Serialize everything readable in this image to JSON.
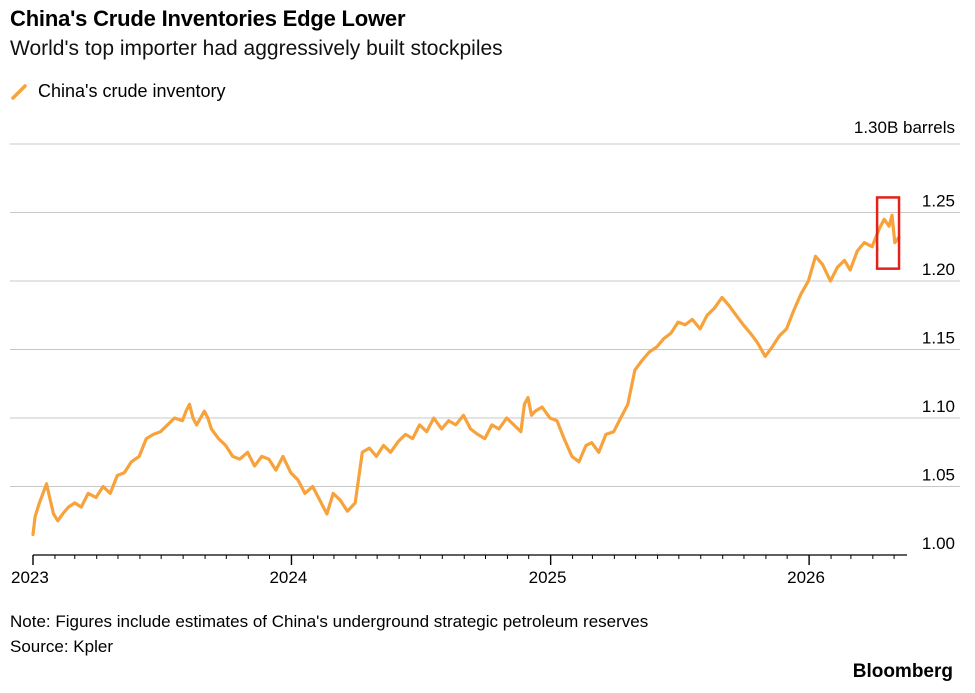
{
  "header": {
    "title": "China's Crude Inventories Edge Lower",
    "subtitle": "World's top importer had aggressively built stockpiles"
  },
  "legend": {
    "label": "China's crude inventory",
    "icon": "line-swatch-icon"
  },
  "footer": {
    "note": "Note: Figures include estimates of China's underground strategic petroleum reserves",
    "source": "Source: Kpler",
    "brand": "Bloomberg"
  },
  "colors": {
    "series": "#F7A23B",
    "grid": "#C8C8C8",
    "axis": "#000000",
    "highlight": "#E2231A"
  },
  "chart_data": {
    "type": "line",
    "title": "China's Crude Inventories Edge Lower",
    "subtitle": "World's top importer had aggressively built stockpiles",
    "unit_label": "1.30B barrels",
    "xlabel": "",
    "ylabel": "",
    "ylim": [
      1.0,
      1.3
    ],
    "yticks": [
      1.0,
      1.05,
      1.1,
      1.15,
      1.2,
      1.25,
      1.3
    ],
    "ytick_labels": [
      "1.00",
      "1.05",
      "1.10",
      "1.15",
      "1.20",
      "1.25",
      "1.30B barrels"
    ],
    "xlim": [
      "2023-01-01",
      "2026-05-15"
    ],
    "xticks": [
      "2023-01-01",
      "2024-01-01",
      "2025-01-01",
      "2026-01-01"
    ],
    "xtick_labels": [
      "2023",
      "2024",
      "2025",
      "2026"
    ],
    "grid": true,
    "legend_position": "top-left",
    "highlight": {
      "note": "recent decline boxed in red",
      "x_range": [
        "2026-04-07",
        "2026-05-08"
      ],
      "y_range": [
        1.209,
        1.261
      ]
    },
    "series": [
      {
        "name": "China's crude inventory",
        "x": [
          "2023-01-01",
          "2023-01-04",
          "2023-01-10",
          "2023-01-20",
          "2023-01-30",
          "2023-02-05",
          "2023-02-12",
          "2023-02-20",
          "2023-03-01",
          "2023-03-10",
          "2023-03-20",
          "2023-03-31",
          "2023-04-10",
          "2023-04-20",
          "2023-04-30",
          "2023-05-10",
          "2023-05-20",
          "2023-05-31",
          "2023-06-10",
          "2023-06-20",
          "2023-06-30",
          "2023-07-10",
          "2023-07-20",
          "2023-07-31",
          "2023-08-05",
          "2023-08-10",
          "2023-08-15",
          "2023-08-20",
          "2023-08-31",
          "2023-09-05",
          "2023-09-10",
          "2023-09-20",
          "2023-09-30",
          "2023-10-10",
          "2023-10-20",
          "2023-10-31",
          "2023-11-10",
          "2023-11-20",
          "2023-11-30",
          "2023-12-10",
          "2023-12-20",
          "2023-12-31",
          "2024-01-10",
          "2024-01-20",
          "2024-01-31",
          "2024-02-10",
          "2024-02-20",
          "2024-02-29",
          "2024-03-10",
          "2024-03-20",
          "2024-03-31",
          "2024-04-10",
          "2024-04-20",
          "2024-04-30",
          "2024-05-10",
          "2024-05-20",
          "2024-05-31",
          "2024-06-10",
          "2024-06-20",
          "2024-06-30",
          "2024-07-10",
          "2024-07-20",
          "2024-07-31",
          "2024-08-10",
          "2024-08-20",
          "2024-08-31",
          "2024-09-10",
          "2024-09-20",
          "2024-09-30",
          "2024-10-10",
          "2024-10-20",
          "2024-10-31",
          "2024-11-10",
          "2024-11-20",
          "2024-11-25",
          "2024-11-30",
          "2024-12-05",
          "2024-12-10",
          "2024-12-20",
          "2024-12-31",
          "2025-01-10",
          "2025-01-20",
          "2025-01-31",
          "2025-02-10",
          "2025-02-20",
          "2025-02-28",
          "2025-03-10",
          "2025-03-20",
          "2025-03-31",
          "2025-04-10",
          "2025-04-20",
          "2025-04-30",
          "2025-05-10",
          "2025-05-20",
          "2025-05-31",
          "2025-06-10",
          "2025-06-20",
          "2025-06-30",
          "2025-07-10",
          "2025-07-20",
          "2025-07-31",
          "2025-08-10",
          "2025-08-20",
          "2025-08-31",
          "2025-09-10",
          "2025-09-20",
          "2025-09-30",
          "2025-10-10",
          "2025-10-20",
          "2025-10-31",
          "2025-11-10",
          "2025-11-20",
          "2025-11-30",
          "2025-12-10",
          "2025-12-20",
          "2025-12-31",
          "2026-01-10",
          "2026-01-20",
          "2026-01-31",
          "2026-02-10",
          "2026-02-20",
          "2026-02-28",
          "2026-03-10",
          "2026-03-20",
          "2026-03-31",
          "2026-04-10",
          "2026-04-17",
          "2026-04-24",
          "2026-04-28",
          "2026-05-02",
          "2026-05-08"
        ],
        "values": [
          1.015,
          1.028,
          1.038,
          1.052,
          1.03,
          1.025,
          1.03,
          1.035,
          1.038,
          1.035,
          1.045,
          1.042,
          1.05,
          1.045,
          1.058,
          1.06,
          1.068,
          1.072,
          1.085,
          1.088,
          1.09,
          1.095,
          1.1,
          1.098,
          1.105,
          1.11,
          1.1,
          1.095,
          1.105,
          1.1,
          1.092,
          1.085,
          1.08,
          1.072,
          1.07,
          1.075,
          1.065,
          1.072,
          1.07,
          1.062,
          1.072,
          1.06,
          1.055,
          1.045,
          1.05,
          1.04,
          1.03,
          1.045,
          1.04,
          1.032,
          1.038,
          1.075,
          1.078,
          1.072,
          1.08,
          1.075,
          1.083,
          1.088,
          1.085,
          1.095,
          1.09,
          1.1,
          1.092,
          1.098,
          1.095,
          1.102,
          1.092,
          1.088,
          1.085,
          1.095,
          1.092,
          1.1,
          1.095,
          1.09,
          1.11,
          1.115,
          1.102,
          1.105,
          1.108,
          1.1,
          1.098,
          1.085,
          1.072,
          1.068,
          1.08,
          1.082,
          1.075,
          1.088,
          1.09,
          1.1,
          1.11,
          1.135,
          1.142,
          1.148,
          1.152,
          1.158,
          1.162,
          1.17,
          1.168,
          1.172,
          1.165,
          1.175,
          1.18,
          1.188,
          1.182,
          1.175,
          1.168,
          1.162,
          1.155,
          1.145,
          1.152,
          1.16,
          1.165,
          1.178,
          1.19,
          1.2,
          1.218,
          1.212,
          1.2,
          1.21,
          1.215,
          1.208,
          1.222,
          1.228,
          1.225,
          1.238,
          1.245,
          1.24,
          1.248,
          1.228,
          1.232
        ]
      }
    ]
  }
}
